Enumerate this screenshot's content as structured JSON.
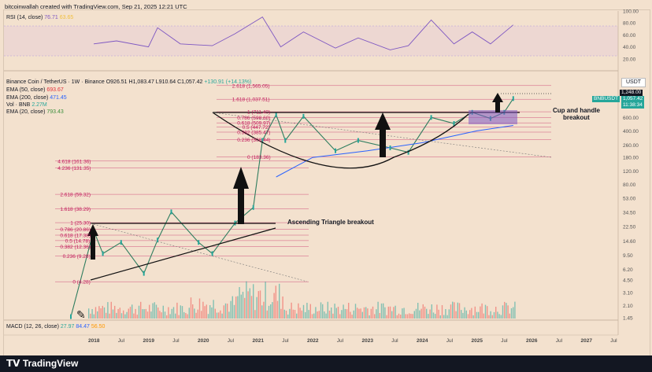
{
  "header": {
    "credit": "bitcoinwallah created with TradingView.com, Sep 21, 2025 12:21 UTC"
  },
  "rsi": {
    "label": "RSI (14, close)",
    "value1": "76.71",
    "value2": "63.65",
    "levels": [
      "100.00",
      "80.00",
      "60.00",
      "40.00",
      "20.00"
    ]
  },
  "main": {
    "symbol": "Binance Coin / TetherUS · 1W · Binance",
    "ohlc": {
      "o": "O926.51",
      "h": "H1,083.47",
      "l": "L910.64",
      "c": "C1,057.42",
      "chg": "+130.91 (+14.13%)"
    },
    "indicators": [
      {
        "label": "EMA (50, close)",
        "value": "693.67",
        "color": "#e0303a"
      },
      {
        "label": "EMA (200, close)",
        "value": "471.45",
        "color": "#2962ff"
      },
      {
        "label": "Vol · BNB",
        "value": "2.27M",
        "color": "#26a69a"
      },
      {
        "label": "EMA (20, close)",
        "value": "793.43",
        "color": "#3d8f3d"
      }
    ],
    "currency_button": "USDT",
    "price_axis": [
      "1,248.05",
      "600.00",
      "400.00",
      "260.00",
      "180.00",
      "120.00",
      "80.00",
      "53.00",
      "34.50",
      "22.50",
      "14.60",
      "9.50",
      "6.20",
      "4.50",
      "3.10",
      "2.10",
      "1.45"
    ],
    "pair_tag": "BNBUSDT",
    "last_price": "1,057.42",
    "countdown": "11:38:34",
    "level_tag": "1,248.00",
    "annotations": {
      "cup": [
        "Cup and handle",
        "breakout"
      ],
      "triangle": "Ascending Triangle breakout"
    },
    "fib_upper": [
      {
        "label": "2.618 (1,565.05)"
      },
      {
        "label": "1.618 (1,037.51)"
      },
      {
        "label": "1 (711.40)"
      },
      {
        "label": "0.786 (598.60)"
      },
      {
        "label": "0.618 (509.97)"
      },
      {
        "label": "0.5 (447.72)"
      },
      {
        "label": "0.382 (385.47)"
      },
      {
        "label": "0.236 (308.44)"
      },
      {
        "label": "0 (183.36)"
      }
    ],
    "fib_lower": [
      {
        "label": "4.618 (161.36)"
      },
      {
        "label": "4.236 (131.35)"
      },
      {
        "label": "2.618 (59.32)"
      },
      {
        "label": "1.618 (38.29)"
      },
      {
        "label": "1 (25.30)"
      },
      {
        "label": "0.786 (20.86)"
      },
      {
        "label": "0.618 (17.38)"
      },
      {
        "label": "0.5 (14.78)"
      },
      {
        "label": "0.382 (12.36)"
      },
      {
        "label": "0.236 (9.28)"
      },
      {
        "label": "0 (4.28)"
      }
    ]
  },
  "macd": {
    "label": "MACD (12, 26, close)",
    "v1": "27.97",
    "v2": "84.47",
    "v3": "56.50"
  },
  "time_axis": [
    "2018",
    "Jul",
    "2019",
    "Jul",
    "2020",
    "Jul",
    "2021",
    "Jul",
    "2022",
    "Jul",
    "2023",
    "Jul",
    "2024",
    "Jul",
    "2025",
    "Jul",
    "2026",
    "Jul",
    "2027",
    "Jul"
  ],
  "brand": "TradingView",
  "colors": {
    "background": "#f3e1ce",
    "bull": "#26a69a",
    "bear": "#ef5350",
    "rsi": "#7e57c2",
    "fib": "#c2185b",
    "handle": "#7e57c2"
  },
  "chart_data": {
    "type": "candlestick",
    "title": "Binance Coin / TetherUS · 1W · Binance",
    "x_range": [
      "2017-07",
      "2027-12"
    ],
    "y_scale": "log",
    "ylim": [
      1.45,
      1400
    ],
    "price_path": [
      {
        "x": "2017-08",
        "y": 1.5
      },
      {
        "x": "2018-01",
        "y": 20
      },
      {
        "x": "2018-03",
        "y": 10
      },
      {
        "x": "2018-07",
        "y": 14
      },
      {
        "x": "2018-12",
        "y": 5.5
      },
      {
        "x": "2019-03",
        "y": 15
      },
      {
        "x": "2019-06",
        "y": 35
      },
      {
        "x": "2019-12",
        "y": 14
      },
      {
        "x": "2020-03",
        "y": 10
      },
      {
        "x": "2020-08",
        "y": 25
      },
      {
        "x": "2020-12",
        "y": 40
      },
      {
        "x": "2021-02",
        "y": 300
      },
      {
        "x": "2021-05",
        "y": 650
      },
      {
        "x": "2021-07",
        "y": 300
      },
      {
        "x": "2021-11",
        "y": 620
      },
      {
        "x": "2022-06",
        "y": 220
      },
      {
        "x": "2022-11",
        "y": 300
      },
      {
        "x": "2023-06",
        "y": 240
      },
      {
        "x": "2023-10",
        "y": 210
      },
      {
        "x": "2024-03",
        "y": 600
      },
      {
        "x": "2024-08",
        "y": 500
      },
      {
        "x": "2024-12",
        "y": 700
      },
      {
        "x": "2025-04",
        "y": 580
      },
      {
        "x": "2025-07",
        "y": 700
      },
      {
        "x": "2025-09",
        "y": 1057.42
      }
    ],
    "ema200_path": [
      {
        "x": "2021-05",
        "y": 100
      },
      {
        "x": "2022-01",
        "y": 180
      },
      {
        "x": "2023-01",
        "y": 220
      },
      {
        "x": "2024-01",
        "y": 280
      },
      {
        "x": "2025-01",
        "y": 400
      },
      {
        "x": "2025-09",
        "y": 471.45
      }
    ],
    "rsi_path": [
      {
        "x": "2018-01",
        "y": 45
      },
      {
        "x": "2018-06",
        "y": 50
      },
      {
        "x": "2019-01",
        "y": 40
      },
      {
        "x": "2019-03",
        "y": 72
      },
      {
        "x": "2019-08",
        "y": 45
      },
      {
        "x": "2020-03",
        "y": 42
      },
      {
        "x": "2020-08",
        "y": 62
      },
      {
        "x": "2021-02",
        "y": 90
      },
      {
        "x": "2021-06",
        "y": 40
      },
      {
        "x": "2021-11",
        "y": 65
      },
      {
        "x": "2022-06",
        "y": 38
      },
      {
        "x": "2022-11",
        "y": 55
      },
      {
        "x": "2023-06",
        "y": 35
      },
      {
        "x": "2023-10",
        "y": 42
      },
      {
        "x": "2024-03",
        "y": 85
      },
      {
        "x": "2024-08",
        "y": 45
      },
      {
        "x": "2024-12",
        "y": 65
      },
      {
        "x": "2025-04",
        "y": 45
      },
      {
        "x": "2025-09",
        "y": 76.71
      }
    ],
    "rsi_ylim": [
      0,
      100
    ]
  }
}
